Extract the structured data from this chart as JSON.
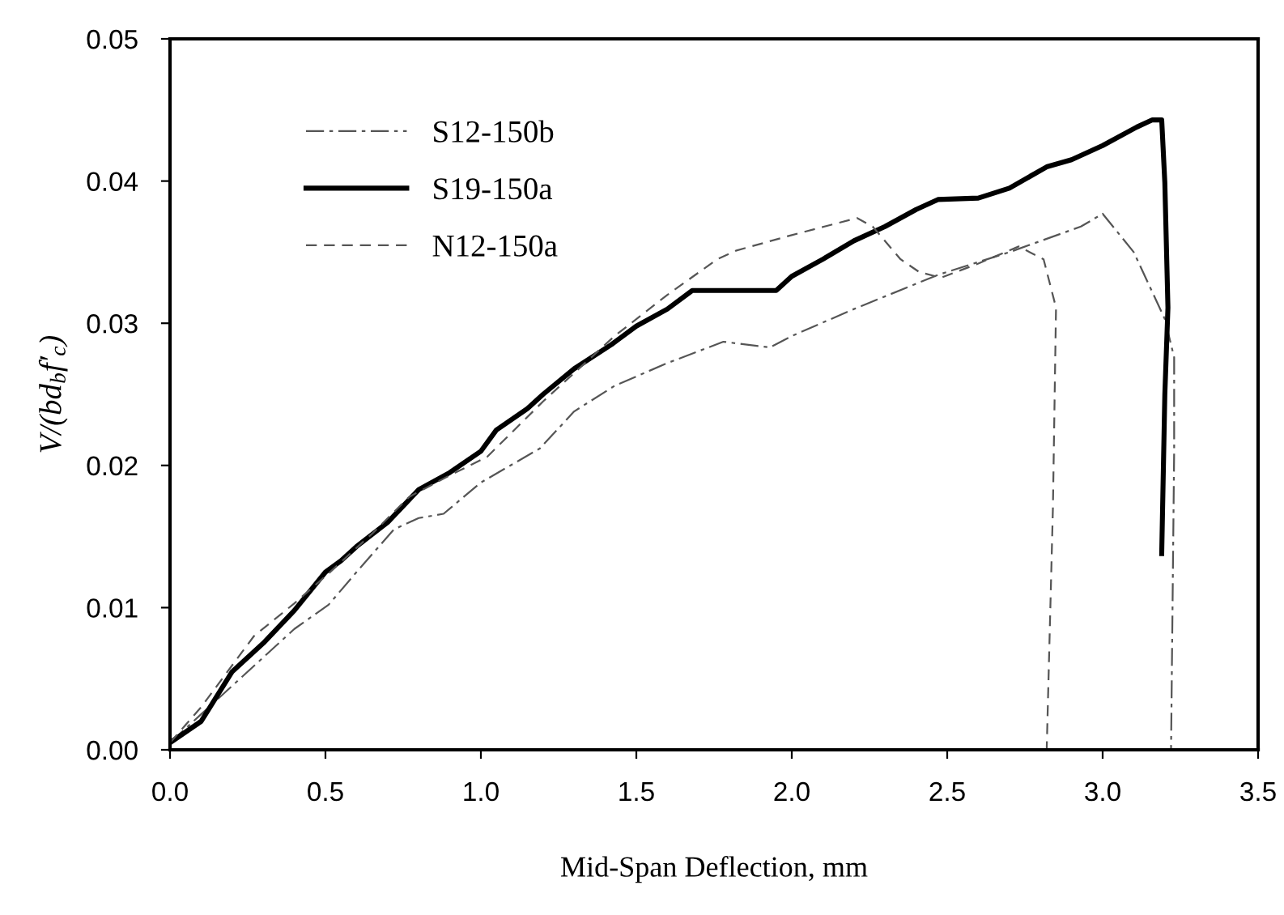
{
  "chart_data": {
    "type": "line",
    "xlabel": "Mid-Span Deflection, mm",
    "ylabel": "V/(bd$_{b}$f′$_{c}$)",
    "xlim": [
      0,
      3.5
    ],
    "xticks": [
      {
        "value": 0,
        "label": "0.0"
      },
      {
        "value": 0.5,
        "label": "0.5"
      },
      {
        "value": 1,
        "label": "1.0"
      },
      {
        "value": 1.5,
        "label": "1.5"
      },
      {
        "value": 2,
        "label": "2.0"
      },
      {
        "value": 2.5,
        "label": "2.5"
      },
      {
        "value": 3,
        "label": "3.0"
      },
      {
        "value": 3.5,
        "label": "3.5"
      }
    ],
    "ylim": [
      0,
      0.05
    ],
    "yticks": [
      {
        "value": 0,
        "label": "0.00"
      },
      {
        "value": 0.01,
        "label": "0.01"
      },
      {
        "value": 0.02,
        "label": "0.02"
      },
      {
        "value": 0.03,
        "label": "0.03"
      },
      {
        "value": 0.04,
        "label": "0.04"
      },
      {
        "value": 0.05,
        "label": "0.05"
      }
    ],
    "grid": false,
    "legend": "top left",
    "marker": "none",
    "series": [
      {
        "name": "S12-150b",
        "color": "#555555",
        "line_style": "dashdot",
        "x": [
          0,
          0.1,
          0.22,
          0.3,
          0.4,
          0.51,
          0.6,
          0.72,
          0.8,
          0.88,
          1.0,
          1.19,
          1.3,
          1.43,
          1.6,
          1.78,
          1.93,
          2.0,
          2.2,
          2.47,
          2.7,
          2.93,
          3.0,
          3.1,
          3.2,
          3.23,
          3.23,
          3.22
        ],
        "values": [
          0.0005,
          0.0025,
          0.0049,
          0.0065,
          0.0085,
          0.0102,
          0.0125,
          0.0155,
          0.0163,
          0.0166,
          0.0188,
          0.0212,
          0.0238,
          0.0256,
          0.0272,
          0.0287,
          0.0283,
          0.0291,
          0.031,
          0.0334,
          0.035,
          0.0368,
          0.0377,
          0.035,
          0.0303,
          0.0276,
          0.021,
          0.0
        ]
      },
      {
        "name": "S19-150a",
        "color": "#000000",
        "line_style": "solid",
        "x": [
          0,
          0.1,
          0.2,
          0.3,
          0.4,
          0.5,
          0.55,
          0.6,
          0.7,
          0.8,
          0.9,
          1.0,
          1.05,
          1.15,
          1.2,
          1.3,
          1.42,
          1.5,
          1.6,
          1.68,
          1.95,
          2.0,
          2.1,
          2.2,
          2.3,
          2.4,
          2.47,
          2.6,
          2.7,
          2.82,
          2.9,
          3.0,
          3.11,
          3.16,
          3.19,
          3.2,
          3.21,
          3.2,
          3.19
        ],
        "values": [
          0.0005,
          0.002,
          0.0055,
          0.0075,
          0.0098,
          0.0125,
          0.0133,
          0.0143,
          0.016,
          0.0183,
          0.0195,
          0.021,
          0.0225,
          0.024,
          0.025,
          0.0268,
          0.0285,
          0.0298,
          0.031,
          0.0323,
          0.0323,
          0.0333,
          0.0345,
          0.0358,
          0.0368,
          0.038,
          0.0387,
          0.0388,
          0.0395,
          0.041,
          0.0415,
          0.0425,
          0.0438,
          0.0443,
          0.0443,
          0.0399,
          0.0311,
          0.025,
          0.0138
        ]
      },
      {
        "name": "N12-150a",
        "color": "#555555",
        "line_style": "dashed",
        "x": [
          0,
          0.1,
          0.27,
          0.4,
          0.51,
          0.65,
          0.77,
          0.9,
          1.02,
          1.2,
          1.43,
          1.6,
          1.76,
          1.82,
          2.0,
          2.21,
          2.26,
          2.35,
          2.41,
          2.48,
          2.6,
          2.73,
          2.81,
          2.85,
          2.84,
          2.82
        ],
        "values": [
          0.0005,
          0.003,
          0.008,
          0.0103,
          0.0124,
          0.0152,
          0.0178,
          0.0193,
          0.0206,
          0.0245,
          0.0291,
          0.032,
          0.0345,
          0.0351,
          0.0362,
          0.0374,
          0.0368,
          0.0345,
          0.0336,
          0.0332,
          0.0342,
          0.0354,
          0.0345,
          0.0311,
          0.017,
          0.0
        ]
      }
    ]
  }
}
